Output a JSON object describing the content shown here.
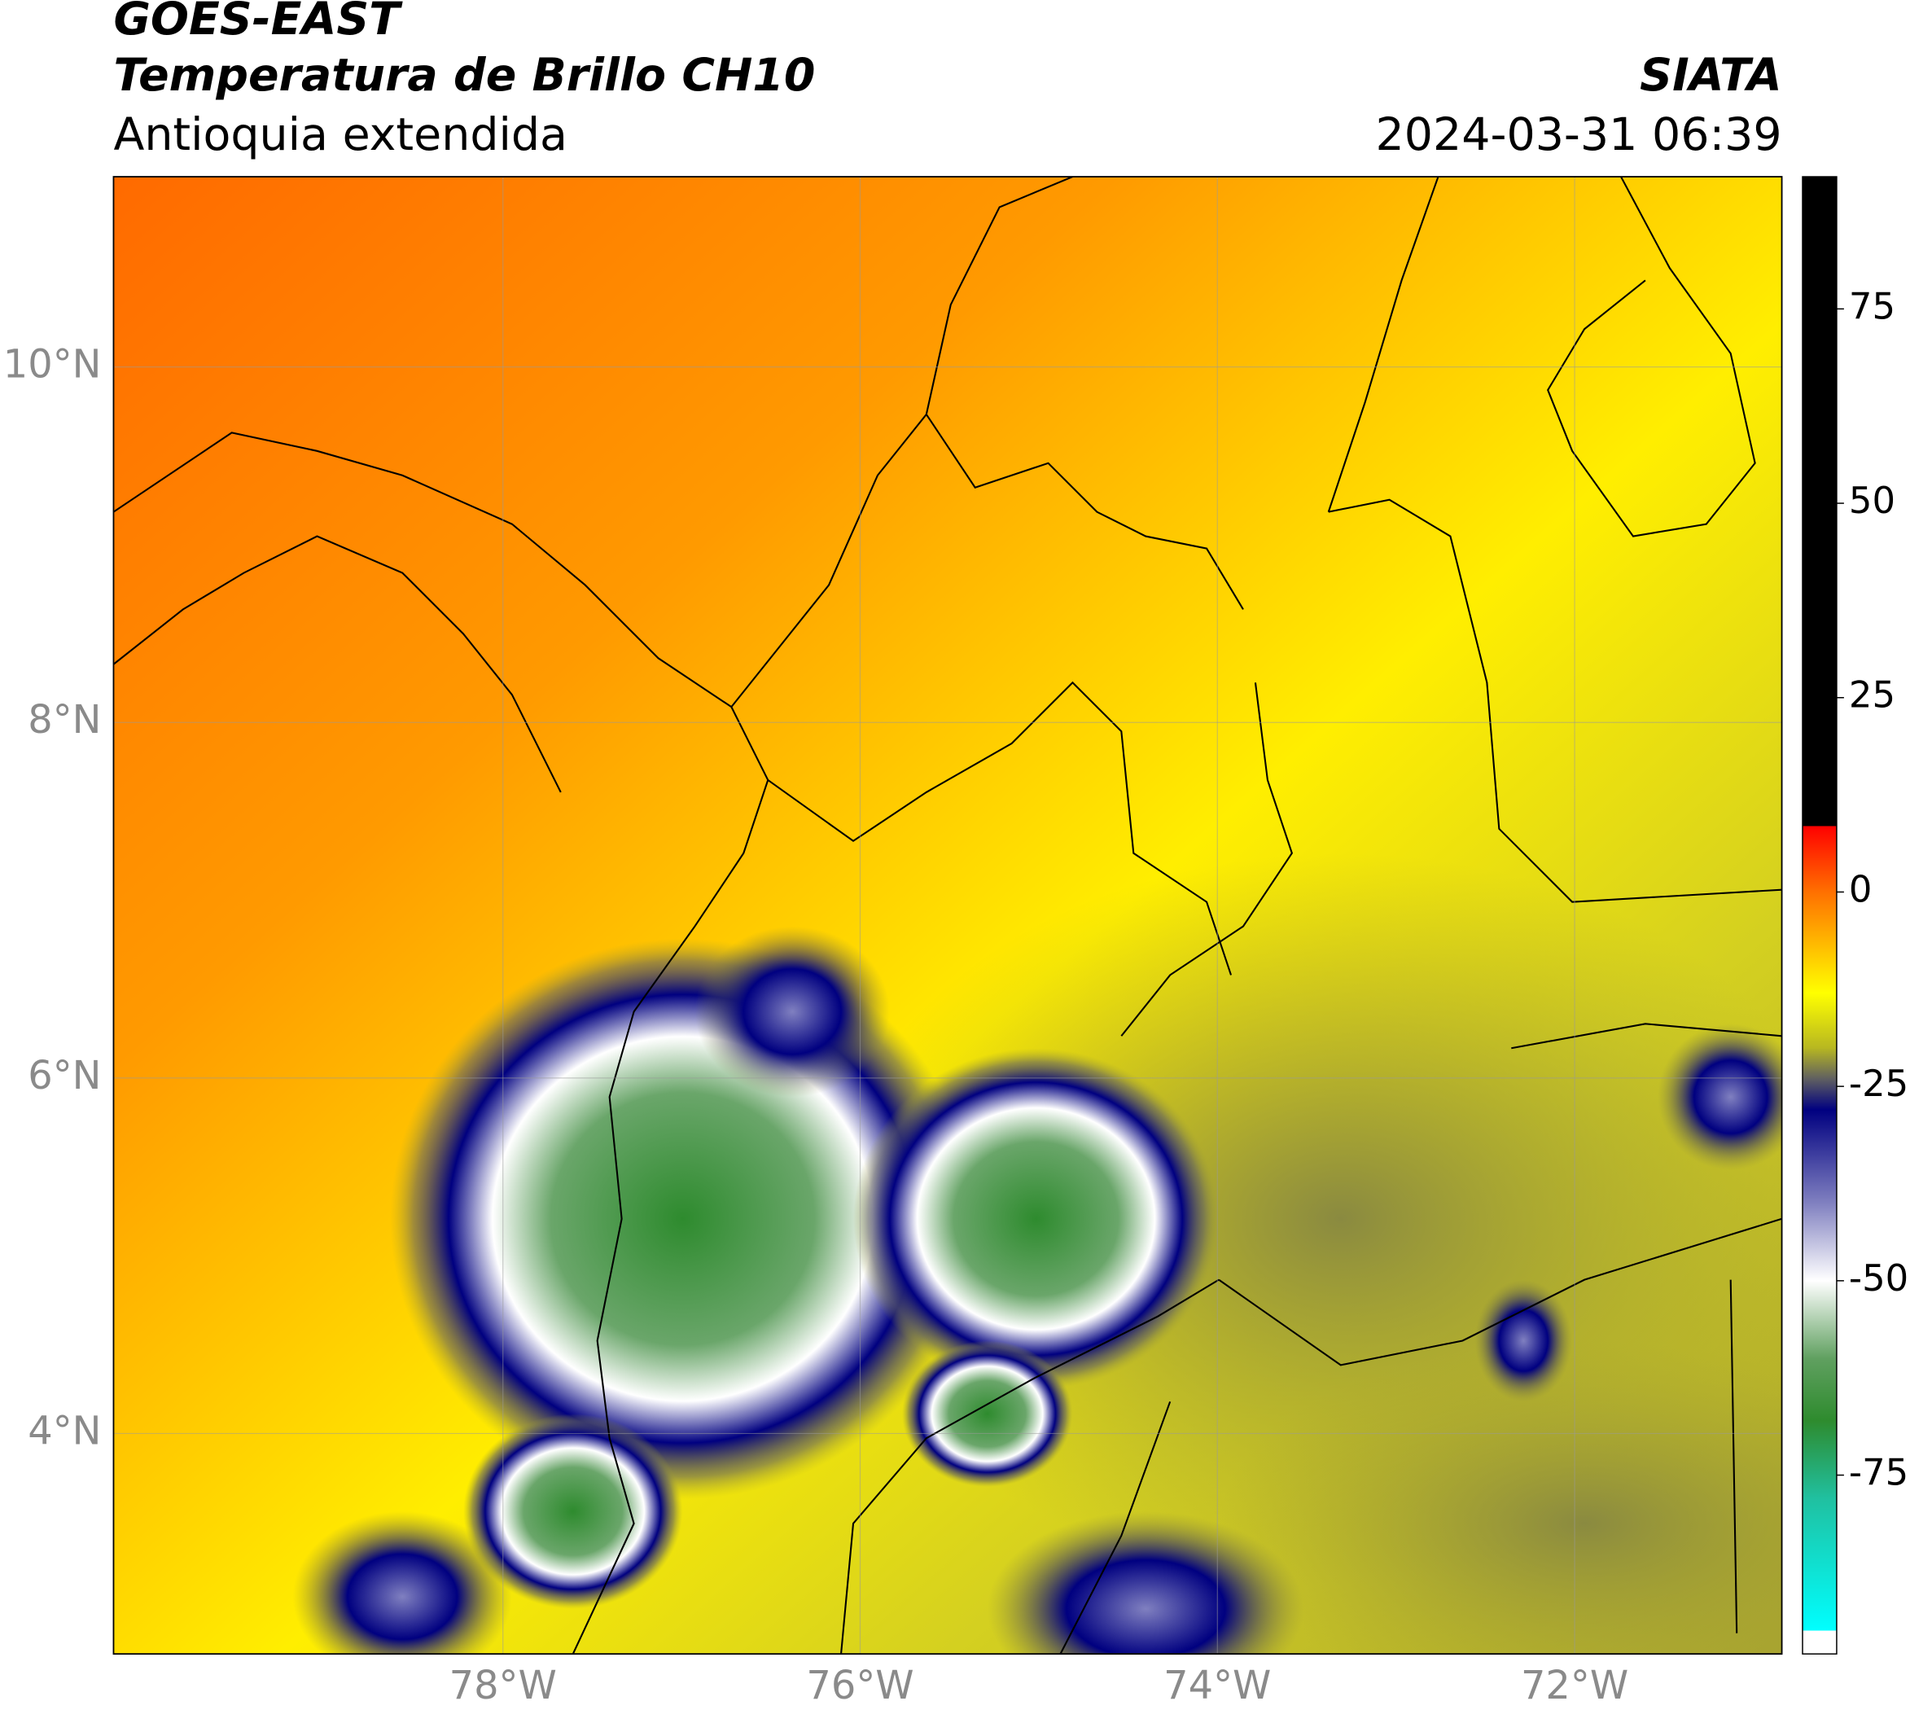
{
  "header": {
    "line1": "GOES-EAST",
    "line2": "Temperatura de Brillo CH10",
    "line3": "Antioquia extendida",
    "source": "SIATA",
    "datetime": "2024-03-31 06:39"
  },
  "map": {
    "xlim": [
      -80.18,
      -70.84
    ],
    "ylim": [
      2.76,
      11.07
    ],
    "xticks": [
      {
        "value": -78,
        "label": "78°W"
      },
      {
        "value": -76,
        "label": "76°W"
      },
      {
        "value": -74,
        "label": "74°W"
      },
      {
        "value": -72,
        "label": "72°W"
      }
    ],
    "yticks": [
      {
        "value": 4,
        "label": "4°N"
      },
      {
        "value": 6,
        "label": "6°N"
      },
      {
        "value": 8,
        "label": "8°N"
      },
      {
        "value": 10,
        "label": "10°N"
      }
    ],
    "grid": true
  },
  "colorbar": {
    "lim": [
      -98,
      92
    ],
    "ticks": [
      75,
      50,
      25,
      0,
      -25,
      -50,
      -75
    ],
    "colormap": [
      {
        "value": 92,
        "color": "#000000"
      },
      {
        "value": 8.5,
        "color": "#000000"
      },
      {
        "value": 8.5,
        "color": "#ff0000"
      },
      {
        "value": 0,
        "color": "#ff7000"
      },
      {
        "value": -13,
        "color": "#ffff00"
      },
      {
        "value": -20,
        "color": "#b8b820"
      },
      {
        "value": -24,
        "color": "#606060"
      },
      {
        "value": -28,
        "color": "#000080"
      },
      {
        "value": -40,
        "color": "#8080c0"
      },
      {
        "value": -50,
        "color": "#ffffff"
      },
      {
        "value": -60,
        "color": "#60a060"
      },
      {
        "value": -68,
        "color": "#2e8b2e"
      },
      {
        "value": -78,
        "color": "#20c0a0"
      },
      {
        "value": -95,
        "color": "#00ffff"
      },
      {
        "value": -95,
        "color": "#ffffff"
      },
      {
        "value": -98,
        "color": "#ffffff"
      }
    ]
  }
}
